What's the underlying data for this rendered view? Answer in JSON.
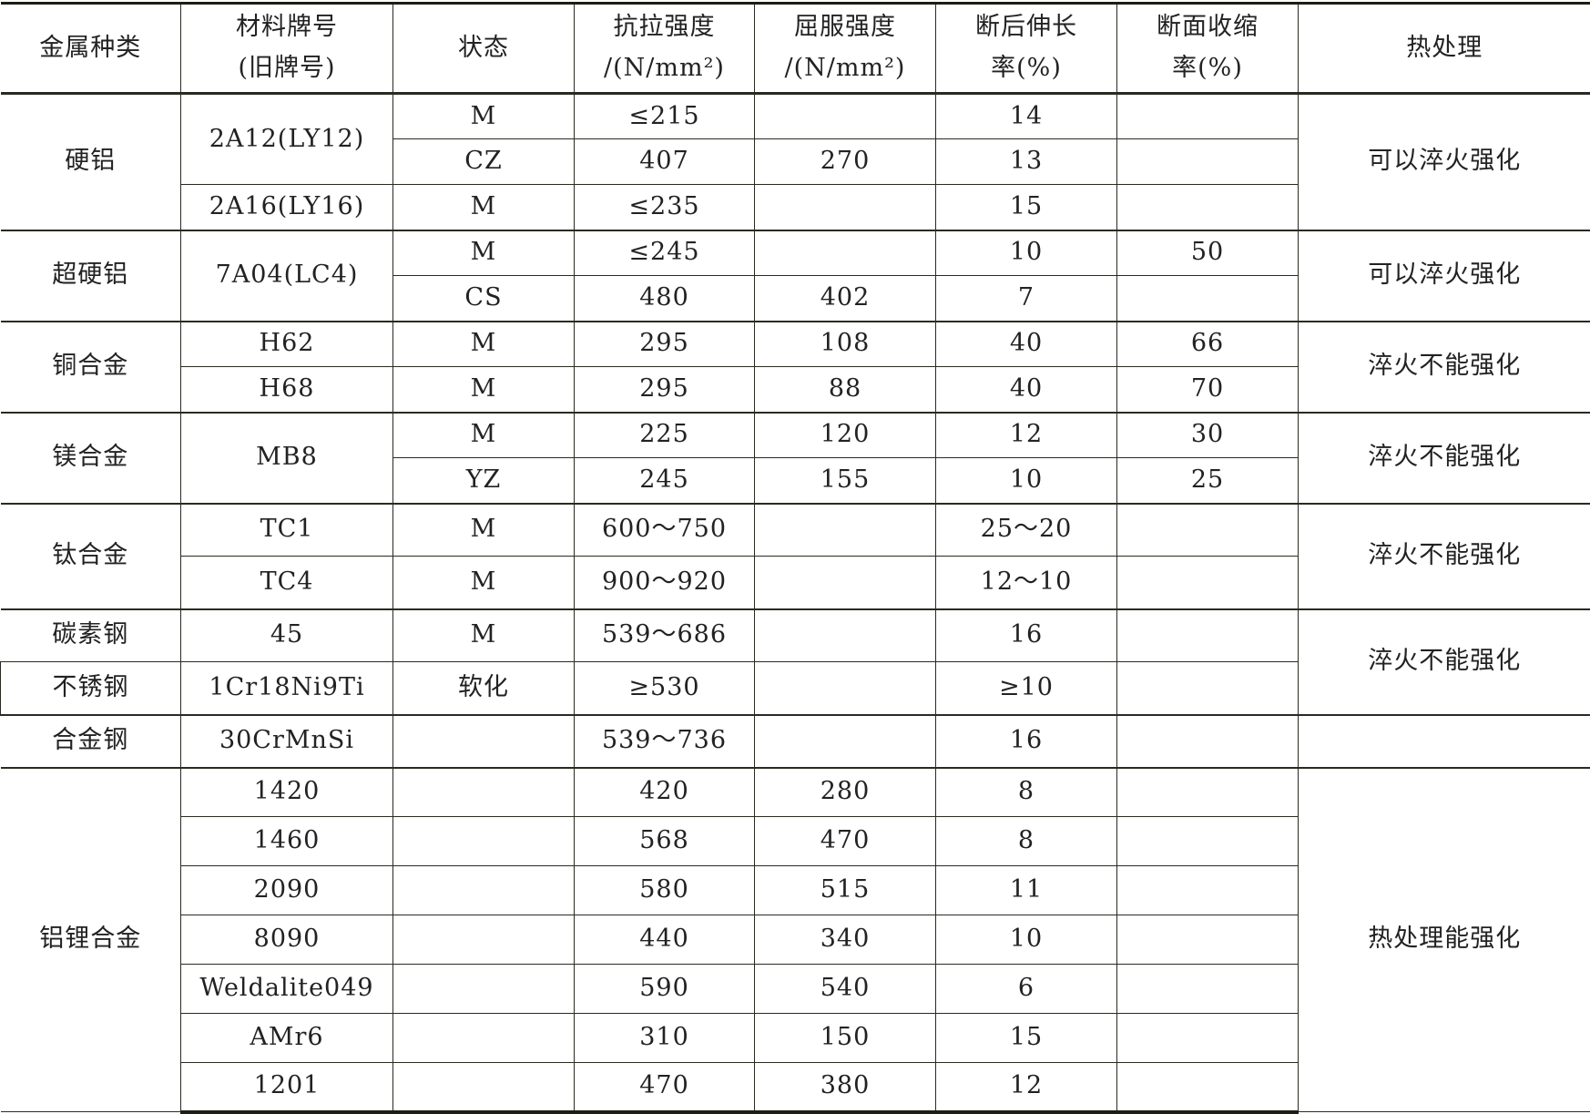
{
  "table": {
    "header": [
      "金属种类",
      "材料牌号\n(旧牌号)",
      "状态",
      "抗拉强度\n/(N/mm²)",
      "屈服强度\n/(N/mm²)",
      "断后伸长\n率(%)",
      "断面收缩\n率(%)",
      "热处理"
    ],
    "rows": [
      [
        {
          "t": "硬铝",
          "rs": 3
        },
        {
          "t": "2A12(LY12)",
          "rs": 2
        },
        {
          "t": "M"
        },
        {
          "t": "≤215"
        },
        {
          "t": ""
        },
        {
          "t": "14"
        },
        {
          "t": ""
        },
        {
          "t": "可以淬火强化",
          "rs": 3
        }
      ],
      [
        {
          "t": "CZ"
        },
        {
          "t": "407"
        },
        {
          "t": "270"
        },
        {
          "t": "13"
        },
        {
          "t": ""
        }
      ],
      [
        {
          "t": "2A16(LY16)"
        },
        {
          "t": "M"
        },
        {
          "t": "≤235"
        },
        {
          "t": ""
        },
        {
          "t": "15"
        },
        {
          "t": ""
        }
      ],
      [
        {
          "t": "超硬铝",
          "rs": 2
        },
        {
          "t": "7A04(LC4)",
          "rs": 2
        },
        {
          "t": "M"
        },
        {
          "t": "≤245"
        },
        {
          "t": ""
        },
        {
          "t": "10"
        },
        {
          "t": "50"
        },
        {
          "t": "可以淬火强化",
          "rs": 2
        }
      ],
      [
        {
          "t": "CS"
        },
        {
          "t": "480"
        },
        {
          "t": "402"
        },
        {
          "t": "7"
        },
        {
          "t": ""
        }
      ],
      [
        {
          "t": "铜合金",
          "rs": 2
        },
        {
          "t": "H62"
        },
        {
          "t": "M"
        },
        {
          "t": "295"
        },
        {
          "t": "108"
        },
        {
          "t": "40"
        },
        {
          "t": "66"
        },
        {
          "t": "淬火不能强化",
          "rs": 2
        }
      ],
      [
        {
          "t": "H68"
        },
        {
          "t": "M"
        },
        {
          "t": "295"
        },
        {
          "t": "88"
        },
        {
          "t": "40"
        },
        {
          "t": "70"
        }
      ],
      [
        {
          "t": "镁合金",
          "rs": 2
        },
        {
          "t": "MB8",
          "rs": 2
        },
        {
          "t": "M"
        },
        {
          "t": "225"
        },
        {
          "t": "120"
        },
        {
          "t": "12"
        },
        {
          "t": "30"
        },
        {
          "t": "淬火不能强化",
          "rs": 2
        }
      ],
      [
        {
          "t": "YZ"
        },
        {
          "t": "245"
        },
        {
          "t": "155"
        },
        {
          "t": "10"
        },
        {
          "t": "25"
        }
      ],
      [
        {
          "t": "钛合金",
          "rs": 2
        },
        {
          "t": "TC1"
        },
        {
          "t": "M"
        },
        {
          "t": "600～750"
        },
        {
          "t": ""
        },
        {
          "t": "25～20"
        },
        {
          "t": ""
        },
        {
          "t": "淬火不能强化",
          "rs": 2
        }
      ],
      [
        {
          "t": "TC4"
        },
        {
          "t": "M"
        },
        {
          "t": "900～920"
        },
        {
          "t": ""
        },
        {
          "t": "12～10"
        },
        {
          "t": ""
        }
      ],
      [
        {
          "t": "碳素钢"
        },
        {
          "t": "45"
        },
        {
          "t": "M"
        },
        {
          "t": "539～686"
        },
        {
          "t": ""
        },
        {
          "t": "16"
        },
        {
          "t": ""
        },
        {
          "t": "淬火不能强化",
          "rs": 2
        }
      ],
      [
        {
          "t": "不锈钢"
        },
        {
          "t": "1Cr18Ni9Ti"
        },
        {
          "t": "软化"
        },
        {
          "t": "≥530"
        },
        {
          "t": ""
        },
        {
          "t": "≥10"
        },
        {
          "t": ""
        }
      ],
      [
        {
          "t": "合金钢"
        },
        {
          "t": "30CrMnSi"
        },
        {
          "t": ""
        },
        {
          "t": "539～736"
        },
        {
          "t": ""
        },
        {
          "t": "16"
        },
        {
          "t": ""
        },
        {
          "t": ""
        }
      ],
      [
        {
          "t": "铝锂合金",
          "rs": 7
        },
        {
          "t": "1420"
        },
        {
          "t": ""
        },
        {
          "t": "420"
        },
        {
          "t": "280"
        },
        {
          "t": "8"
        },
        {
          "t": ""
        },
        {
          "t": "热处理能强化",
          "rs": 7
        }
      ],
      [
        {
          "t": "1460"
        },
        {
          "t": ""
        },
        {
          "t": "568"
        },
        {
          "t": "470"
        },
        {
          "t": "8"
        },
        {
          "t": ""
        }
      ],
      [
        {
          "t": "2090"
        },
        {
          "t": ""
        },
        {
          "t": "580"
        },
        {
          "t": "515"
        },
        {
          "t": "11"
        },
        {
          "t": ""
        }
      ],
      [
        {
          "t": "8090"
        },
        {
          "t": ""
        },
        {
          "t": "440"
        },
        {
          "t": "340"
        },
        {
          "t": "10"
        },
        {
          "t": ""
        }
      ],
      [
        {
          "t": "Weldalite049"
        },
        {
          "t": ""
        },
        {
          "t": "590"
        },
        {
          "t": "540"
        },
        {
          "t": "6"
        },
        {
          "t": ""
        }
      ],
      [
        {
          "t": "AMr6"
        },
        {
          "t": ""
        },
        {
          "t": "310"
        },
        {
          "t": "150"
        },
        {
          "t": "15"
        },
        {
          "t": ""
        }
      ],
      [
        {
          "t": "1201"
        },
        {
          "t": ""
        },
        {
          "t": "470"
        },
        {
          "t": "380"
        },
        {
          "t": "12"
        },
        {
          "t": ""
        }
      ]
    ]
  }
}
